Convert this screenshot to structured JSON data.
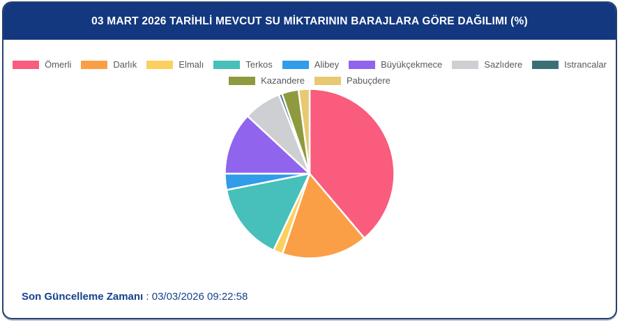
{
  "chart_data": {
    "type": "pie",
    "title": "03 MART 2026 TARİHLİ MEVCUT SU MİKTARININ BARAJLARA GÖRE DAĞILIMI (%)",
    "unit": "%",
    "direction": "clockwise",
    "start_angle_deg": 0,
    "legend_position": "top",
    "legend_row_break": 8,
    "slice_gap_color": "#ffffff",
    "series": [
      {
        "name": "Ömerli",
        "value": 38.8,
        "color": "#f95c7d"
      },
      {
        "name": "Darlık",
        "value": 16.4,
        "color": "#fb9f47"
      },
      {
        "name": "Elmalı",
        "value": 1.8,
        "color": "#fcd05f"
      },
      {
        "name": "Terkos",
        "value": 14.9,
        "color": "#47bfba"
      },
      {
        "name": "Alibey",
        "value": 3.1,
        "color": "#319ce8"
      },
      {
        "name": "Büyükçekmece",
        "value": 11.9,
        "color": "#9164ee"
      },
      {
        "name": "Sazlıdere",
        "value": 7.2,
        "color": "#cdcfd3"
      },
      {
        "name": "Istrancalar",
        "value": 0.6,
        "color": "#3a7075"
      },
      {
        "name": "Kazandere",
        "value": 3.2,
        "color": "#8f9a40"
      },
      {
        "name": "Pabuçdere",
        "value": 2.1,
        "color": "#e8c871"
      }
    ]
  },
  "footer": {
    "label": "Son Güncelleme Zamanı",
    "separator": " : ",
    "value": "03/03/2026 09:22:58"
  },
  "theme": {
    "header_bg": "#13387f",
    "border_color": "#26406f",
    "footer_text": "#15418c",
    "legend_text": "#58595b"
  }
}
